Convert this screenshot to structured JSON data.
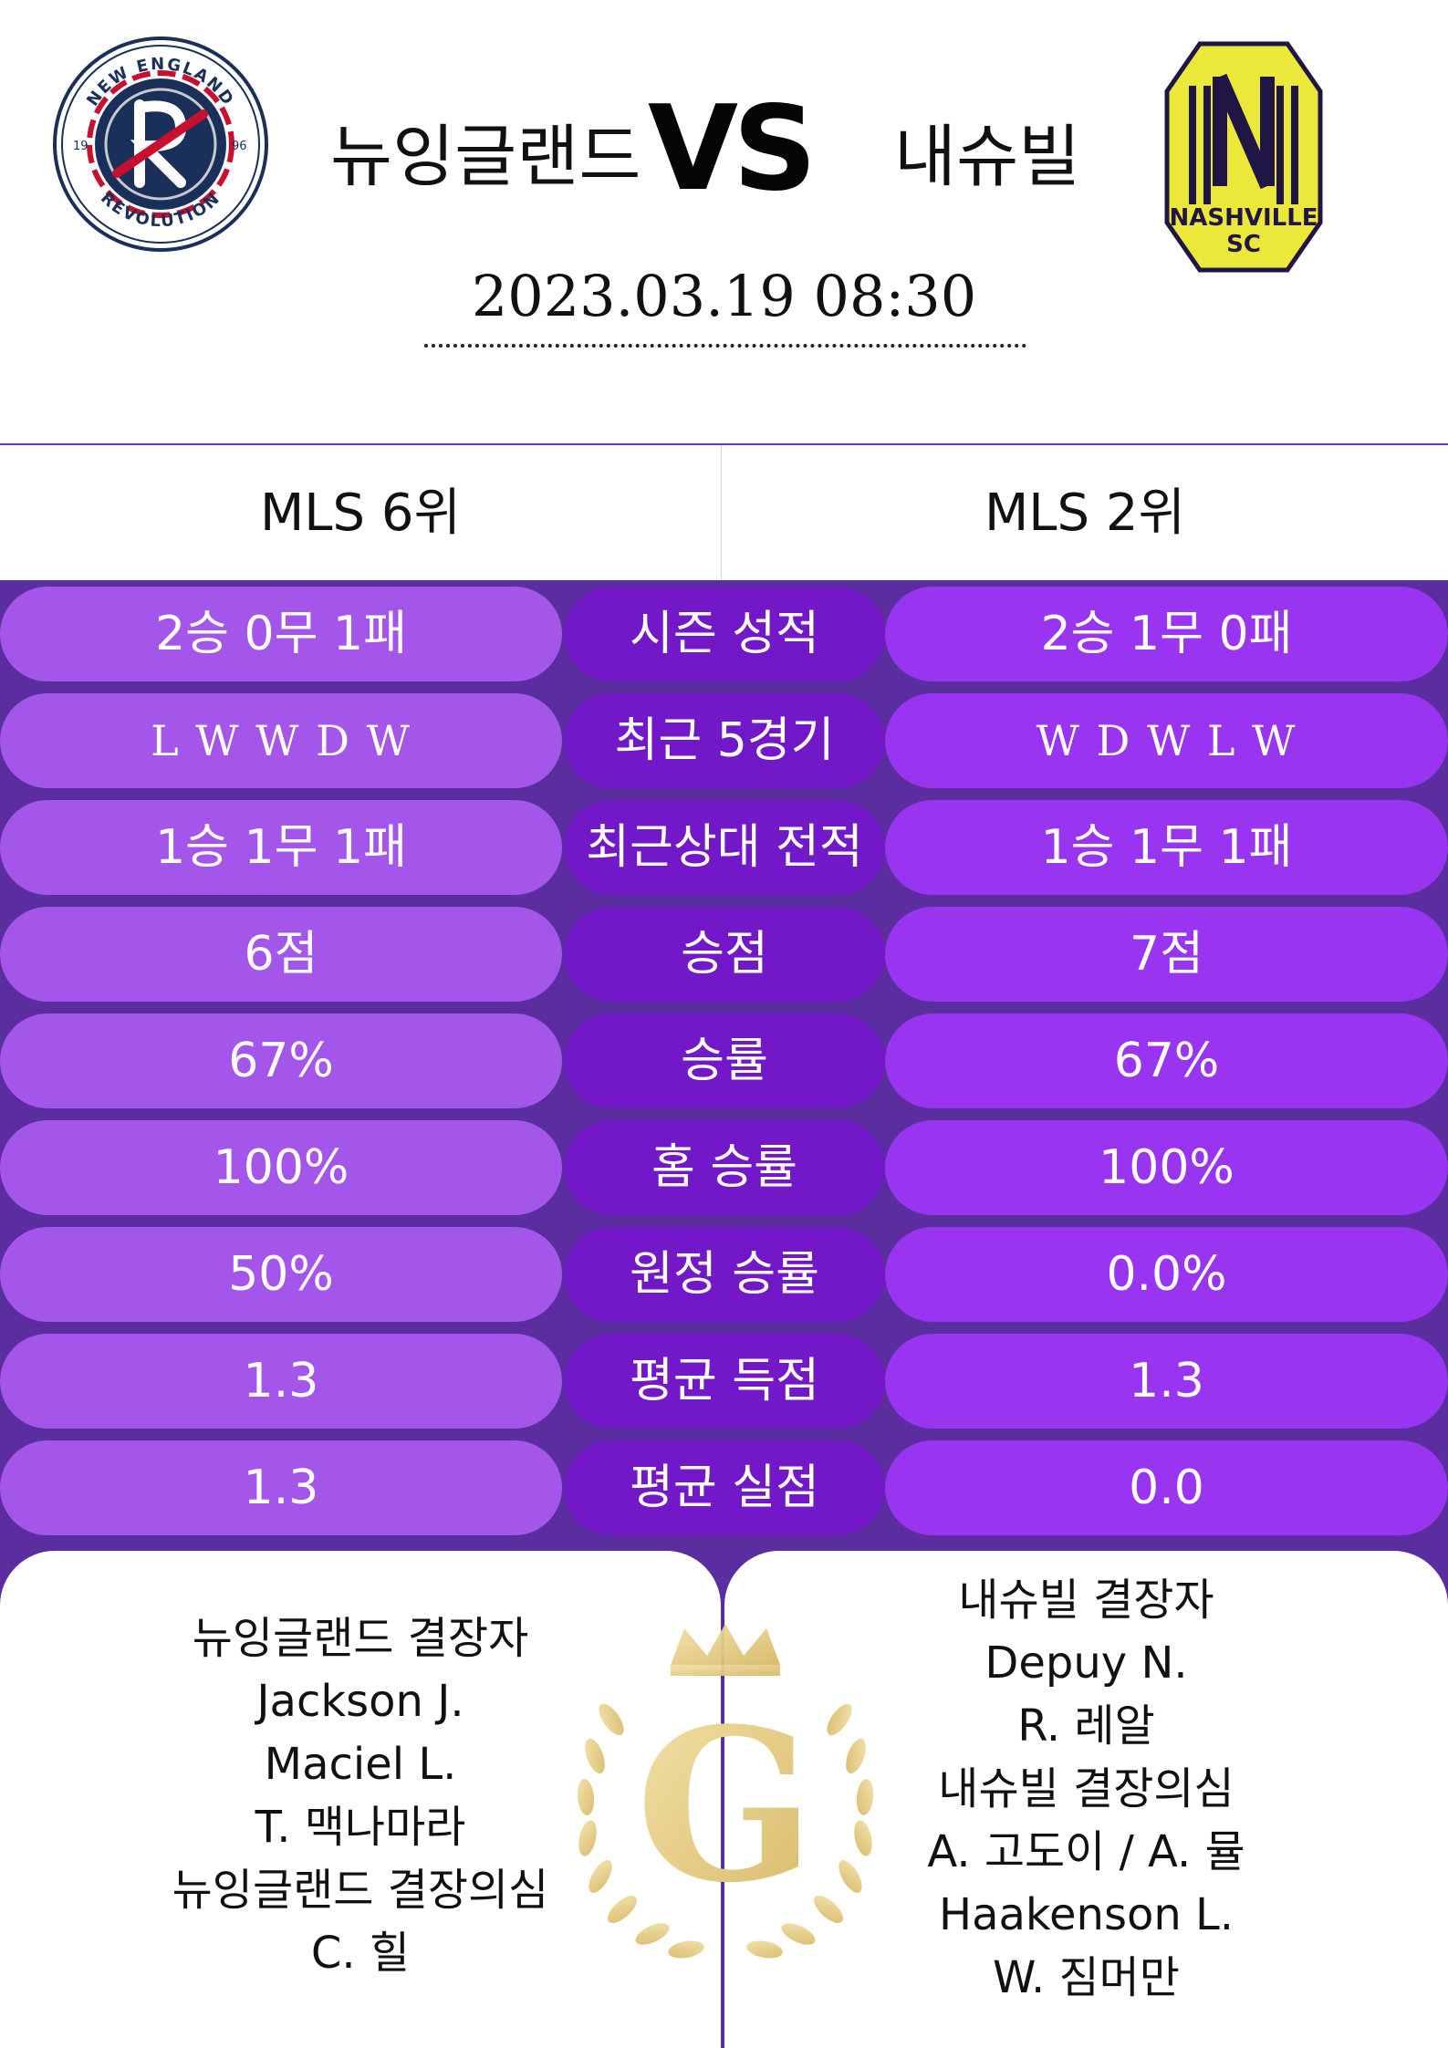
{
  "match": {
    "home_team": "뉴잉글랜드",
    "away_team": "내슈빌",
    "vs": "VS",
    "datetime": "2023.03.19  08:30"
  },
  "logos": {
    "home": {
      "ring_top_text": "NEW ENGLAND",
      "ring_bottom_text": "REVOLUTION",
      "year_left": "19",
      "year_right": "96",
      "letter": "R",
      "colors": {
        "navy": "#1b2f5b",
        "red": "#c8102e",
        "silver": "#c8c9cc"
      }
    },
    "away": {
      "line1": "NASHVILLE",
      "line2": "SC",
      "letter": "N",
      "colors": {
        "gold": "#ece83a",
        "navy": "#1f1646"
      }
    }
  },
  "ranks": {
    "home": "MLS 6위",
    "away": "MLS 2위"
  },
  "stats": [
    {
      "label": "시즌 성적",
      "home": "2승 0무 1패",
      "away": "2승 1무 0패"
    },
    {
      "label": "최근 5경기",
      "home": "L W W D W",
      "away": "W D W L W"
    },
    {
      "label": "최근상대 전적",
      "home": "1승 1무 1패",
      "away": "1승 1무 1패"
    },
    {
      "label": "승점",
      "home": "6점",
      "away": "7점"
    },
    {
      "label": "승률",
      "home": "67%",
      "away": "67%"
    },
    {
      "label": "홈 승률",
      "home": "100%",
      "away": "100%"
    },
    {
      "label": "원정 승률",
      "home": "50%",
      "away": "0.0%"
    },
    {
      "label": "평균 득점",
      "home": "1.3",
      "away": "1.3"
    },
    {
      "label": "평균 실점",
      "home": "1.3",
      "away": "0.0"
    }
  ],
  "absentees": {
    "home": [
      "뉴잉글랜드 결장자",
      "Jackson J.",
      "Maciel L.",
      "T. 맥나마라",
      "뉴잉글랜드 결장의심",
      "C. 힐"
    ],
    "away": [
      "내슈빌 결장자",
      "Depuy N.",
      "R. 레알",
      "내슈빌 결장의심",
      "A. 고도이 / A. 뮬",
      "Haakenson L.",
      "W. 짐머만"
    ]
  },
  "watermark": {
    "letter": "G",
    "color": "#e6cf8c"
  },
  "colors": {
    "purple_bg": "#5b2ea0",
    "pill_home": "#a455ea",
    "pill_label": "#7318c8",
    "pill_away": "#9934f0"
  }
}
